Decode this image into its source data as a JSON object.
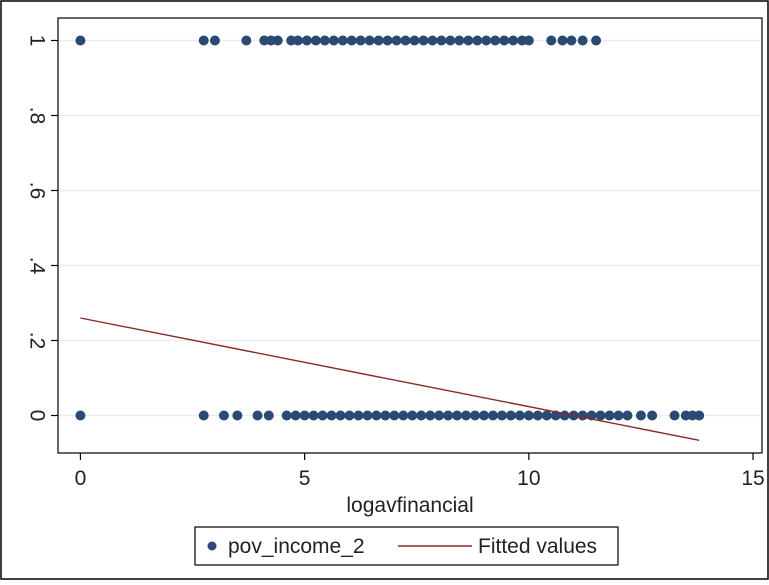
{
  "chart_data": {
    "type": "scatter",
    "title": "",
    "xlabel": "logavfinancial",
    "ylabel": "",
    "xlim": [
      -0.5,
      15.2
    ],
    "ylim": [
      -0.1,
      1.06
    ],
    "xticks": [
      0,
      5,
      10,
      15
    ],
    "xtick_labels": [
      "0",
      "5",
      "10",
      "15"
    ],
    "yticks": [
      0,
      0.2,
      0.4,
      0.6,
      0.8,
      1
    ],
    "ytick_labels": [
      "0",
      ".2",
      ".4",
      ".6",
      ".8",
      "1"
    ],
    "grid": true,
    "legend_position": "bottom",
    "colors": {
      "points": "#2b4a73",
      "fit_line": "#8a2a2a",
      "grid": "#e9ecef",
      "frame": "#000000"
    },
    "series": [
      {
        "name": "pov_income_2",
        "type": "scatter",
        "points": [
          {
            "x": 0.0,
            "y": 1
          },
          {
            "x": 2.75,
            "y": 1
          },
          {
            "x": 3.0,
            "y": 1
          },
          {
            "x": 3.7,
            "y": 1
          },
          {
            "x": 4.1,
            "y": 1
          },
          {
            "x": 4.25,
            "y": 1
          },
          {
            "x": 4.4,
            "y": 1
          },
          {
            "x": 4.7,
            "y": 1
          },
          {
            "x": 4.85,
            "y": 1
          },
          {
            "x": 5.05,
            "y": 1
          },
          {
            "x": 5.25,
            "y": 1
          },
          {
            "x": 5.45,
            "y": 1
          },
          {
            "x": 5.65,
            "y": 1
          },
          {
            "x": 5.85,
            "y": 1
          },
          {
            "x": 6.05,
            "y": 1
          },
          {
            "x": 6.25,
            "y": 1
          },
          {
            "x": 6.45,
            "y": 1
          },
          {
            "x": 6.65,
            "y": 1
          },
          {
            "x": 6.85,
            "y": 1
          },
          {
            "x": 7.05,
            "y": 1
          },
          {
            "x": 7.25,
            "y": 1
          },
          {
            "x": 7.45,
            "y": 1
          },
          {
            "x": 7.65,
            "y": 1
          },
          {
            "x": 7.85,
            "y": 1
          },
          {
            "x": 8.05,
            "y": 1
          },
          {
            "x": 8.25,
            "y": 1
          },
          {
            "x": 8.45,
            "y": 1
          },
          {
            "x": 8.65,
            "y": 1
          },
          {
            "x": 8.85,
            "y": 1
          },
          {
            "x": 9.05,
            "y": 1
          },
          {
            "x": 9.25,
            "y": 1
          },
          {
            "x": 9.45,
            "y": 1
          },
          {
            "x": 9.65,
            "y": 1
          },
          {
            "x": 9.85,
            "y": 1
          },
          {
            "x": 10.0,
            "y": 1
          },
          {
            "x": 10.5,
            "y": 1
          },
          {
            "x": 10.75,
            "y": 1
          },
          {
            "x": 10.95,
            "y": 1
          },
          {
            "x": 11.2,
            "y": 1
          },
          {
            "x": 11.5,
            "y": 1
          },
          {
            "x": 0.0,
            "y": 0
          },
          {
            "x": 2.75,
            "y": 0
          },
          {
            "x": 3.2,
            "y": 0
          },
          {
            "x": 3.5,
            "y": 0
          },
          {
            "x": 3.95,
            "y": 0
          },
          {
            "x": 4.2,
            "y": 0
          },
          {
            "x": 4.6,
            "y": 0
          },
          {
            "x": 4.8,
            "y": 0
          },
          {
            "x": 5.0,
            "y": 0
          },
          {
            "x": 5.2,
            "y": 0
          },
          {
            "x": 5.4,
            "y": 0
          },
          {
            "x": 5.6,
            "y": 0
          },
          {
            "x": 5.8,
            "y": 0
          },
          {
            "x": 6.0,
            "y": 0
          },
          {
            "x": 6.2,
            "y": 0
          },
          {
            "x": 6.4,
            "y": 0
          },
          {
            "x": 6.6,
            "y": 0
          },
          {
            "x": 6.8,
            "y": 0
          },
          {
            "x": 7.0,
            "y": 0
          },
          {
            "x": 7.2,
            "y": 0
          },
          {
            "x": 7.4,
            "y": 0
          },
          {
            "x": 7.6,
            "y": 0
          },
          {
            "x": 7.8,
            "y": 0
          },
          {
            "x": 8.0,
            "y": 0
          },
          {
            "x": 8.2,
            "y": 0
          },
          {
            "x": 8.4,
            "y": 0
          },
          {
            "x": 8.6,
            "y": 0
          },
          {
            "x": 8.8,
            "y": 0
          },
          {
            "x": 9.0,
            "y": 0
          },
          {
            "x": 9.2,
            "y": 0
          },
          {
            "x": 9.4,
            "y": 0
          },
          {
            "x": 9.6,
            "y": 0
          },
          {
            "x": 9.8,
            "y": 0
          },
          {
            "x": 10.0,
            "y": 0
          },
          {
            "x": 10.2,
            "y": 0
          },
          {
            "x": 10.4,
            "y": 0
          },
          {
            "x": 10.6,
            "y": 0
          },
          {
            "x": 10.8,
            "y": 0
          },
          {
            "x": 11.0,
            "y": 0
          },
          {
            "x": 11.2,
            "y": 0
          },
          {
            "x": 11.4,
            "y": 0
          },
          {
            "x": 11.6,
            "y": 0
          },
          {
            "x": 11.8,
            "y": 0
          },
          {
            "x": 12.0,
            "y": 0
          },
          {
            "x": 12.2,
            "y": 0
          },
          {
            "x": 12.5,
            "y": 0
          },
          {
            "x": 12.75,
            "y": 0
          },
          {
            "x": 13.25,
            "y": 0
          },
          {
            "x": 13.5,
            "y": 0
          },
          {
            "x": 13.65,
            "y": 0
          },
          {
            "x": 13.8,
            "y": 0
          }
        ]
      },
      {
        "name": "Fitted values",
        "type": "line",
        "points": [
          {
            "x": 0.0,
            "y": 0.26
          },
          {
            "x": 13.8,
            "y": -0.066
          }
        ]
      }
    ]
  }
}
